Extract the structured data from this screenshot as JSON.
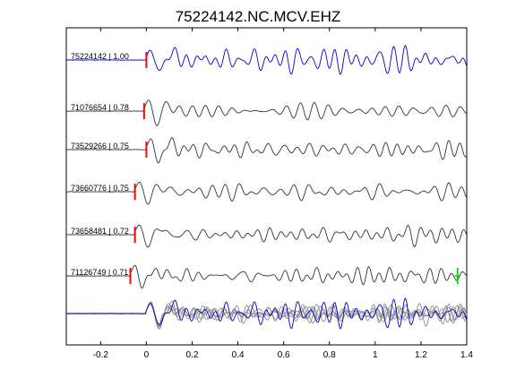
{
  "chart_data": {
    "type": "line",
    "title": "75224142.NC.MCV.EHZ",
    "xlabel": "",
    "ylabel": "",
    "xlim": [
      -0.35,
      1.4
    ],
    "x_ticks": [
      "-0.2",
      "0",
      "0.2",
      "0.4",
      "0.6",
      "0.8",
      "1",
      "1.2",
      "1.4"
    ],
    "x_tick_values": [
      -0.2,
      0,
      0.2,
      0.4,
      0.6,
      0.8,
      1.0,
      1.2,
      1.4
    ],
    "grid": false,
    "colors": {
      "reference": "#0000cc",
      "trace": "#333333",
      "stack": "#8c8c8c",
      "pick": "#ff0000",
      "s_pick": "#00cc00"
    },
    "series": [
      {
        "name": "75224142 | 1.00",
        "label": "75224142 | 1.00",
        "color": "#0000cc",
        "pick_time": 0.0,
        "seed": 1,
        "ref": true
      },
      {
        "name": "71076654 | 0.78",
        "label": "71076654 | 0.78",
        "color": "#333333",
        "pick_time": -0.01,
        "seed": 2
      },
      {
        "name": "73529266 | 0.75",
        "label": "73529266 | 0.75",
        "color": "#333333",
        "pick_time": 0.0,
        "seed": 3
      },
      {
        "name": "73660776 | 0.75",
        "label": "73660776 | 0.75",
        "color": "#333333",
        "pick_time": -0.05,
        "seed": 4
      },
      {
        "name": "73658481 | 0.72",
        "label": "73658481 | 0.72",
        "color": "#333333",
        "pick_time": -0.05,
        "seed": 5
      },
      {
        "name": "71126749 | 0.71",
        "label": "71126749 | 0.71",
        "color": "#333333",
        "pick_time": -0.07,
        "seed": 6,
        "s_pick_time": 1.36
      }
    ],
    "stack": {
      "name": "overlay",
      "description_visible": false
    }
  }
}
